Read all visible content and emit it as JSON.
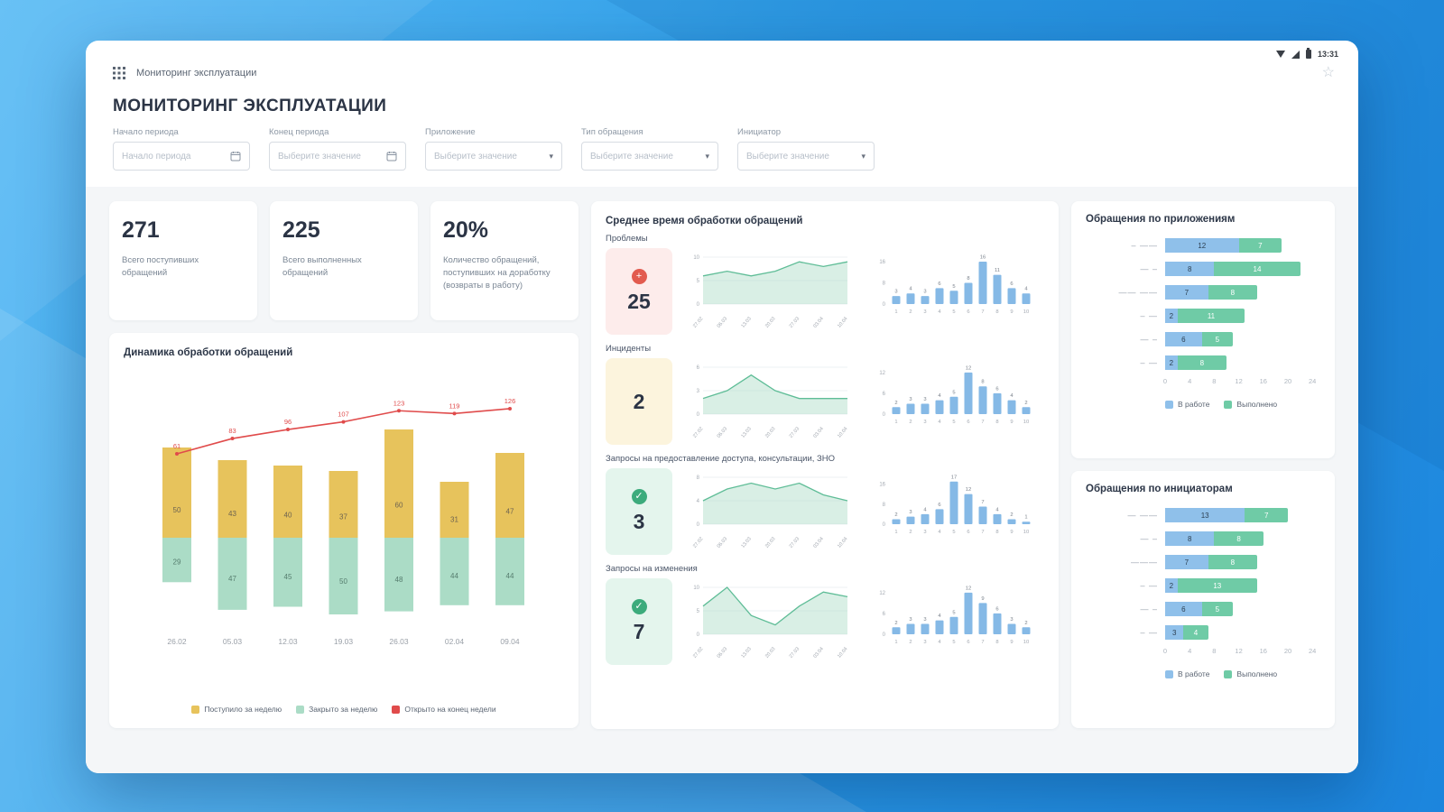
{
  "status_bar": {
    "time": "13:31"
  },
  "app_bar": {
    "title": "Мониторинг эксплуатации"
  },
  "page": {
    "title": "МОНИТОРИНГ ЭКСПЛУАТАЦИИ"
  },
  "filters": [
    {
      "label": "Начало периода",
      "placeholder": "Начало периода",
      "kind": "date"
    },
    {
      "label": "Конец периода",
      "placeholder": "Выберите значение",
      "kind": "date"
    },
    {
      "label": "Приложение",
      "placeholder": "Выберите значение",
      "kind": "select"
    },
    {
      "label": "Тип обращения",
      "placeholder": "Выберите значение",
      "kind": "select"
    },
    {
      "label": "Инициатор",
      "placeholder": "Выберите значение",
      "kind": "select"
    }
  ],
  "kpis": [
    {
      "value": "271",
      "label": "Всего поступивших обращений"
    },
    {
      "value": "225",
      "label": "Всего выполненных обращений"
    },
    {
      "value": "20%",
      "label": "Количество обращений, поступивших на доработку (возвраты в работу)"
    }
  ],
  "chart_data": {
    "dynamics": {
      "type": "bar+line",
      "title": "Динамика обработки обращений",
      "categories": [
        "26.02",
        "05.03",
        "12.03",
        "19.03",
        "26.03",
        "02.04",
        "09.04"
      ],
      "series": [
        {
          "name": "Поступило за неделю",
          "type": "bar-up",
          "color": "#e7c35c",
          "values": [
            50,
            43,
            40,
            37,
            60,
            31,
            47
          ]
        },
        {
          "name": "Закрыто за неделю",
          "type": "bar-down",
          "color": "#abdcc6",
          "values": [
            29,
            47,
            45,
            50,
            48,
            44,
            44
          ]
        },
        {
          "name": "Открыто на конец недели",
          "type": "line",
          "color": "#e04b4b",
          "values": [
            61,
            83,
            96,
            107,
            123,
            119,
            126
          ]
        }
      ]
    },
    "avg_times": {
      "title": "Среднее время обработки обращений",
      "rows": [
        {
          "label": "Проблемы",
          "value": "25",
          "status": "red",
          "icon": "plus-circle",
          "area": {
            "x": [
              "27.02",
              "06.03",
              "13.03",
              "20.03",
              "27.03",
              "03.04",
              "10.04"
            ],
            "values": [
              6,
              7,
              6,
              7,
              9,
              8,
              9
            ],
            "ymax": 10,
            "yticks": [
              10,
              5,
              0
            ]
          },
          "bars": {
            "x": [
              "1",
              "2",
              "3",
              "4",
              "5",
              "6",
              "7",
              "8",
              "9",
              "10"
            ],
            "values": [
              3,
              4,
              3,
              6,
              5,
              8,
              16,
              11,
              6,
              4
            ],
            "ymax": 17,
            "yticks": [
              16,
              8,
              0
            ]
          }
        },
        {
          "label": "Инциденты",
          "value": "2",
          "status": "yellow",
          "icon": "",
          "area": {
            "x": [
              "27.02",
              "06.03",
              "13.03",
              "20.03",
              "27.03",
              "03.04",
              "10.04"
            ],
            "values": [
              2,
              3,
              5,
              3,
              2,
              2,
              2
            ],
            "ymax": 6,
            "yticks": [
              6,
              3,
              0
            ]
          },
          "bars": {
            "x": [
              "1",
              "2",
              "3",
              "4",
              "5",
              "6",
              "7",
              "8",
              "9",
              "10"
            ],
            "values": [
              2,
              3,
              3,
              4,
              5,
              12,
              8,
              6,
              4,
              2
            ],
            "ymax": 13,
            "yticks": [
              12,
              6,
              0
            ]
          }
        },
        {
          "label": "Запросы на предоставление доступа, консультации, ЗНО",
          "value": "3",
          "status": "green",
          "icon": "check-circle",
          "area": {
            "x": [
              "27.02",
              "06.03",
              "13.03",
              "20.03",
              "27.03",
              "03.04",
              "10.04"
            ],
            "values": [
              4,
              6,
              7,
              6,
              7,
              5,
              4
            ],
            "ymax": 8,
            "yticks": [
              8,
              4,
              0
            ]
          },
          "bars": {
            "x": [
              "1",
              "2",
              "3",
              "4",
              "5",
              "6",
              "7",
              "8",
              "9",
              "10"
            ],
            "values": [
              2,
              3,
              4,
              6,
              17,
              12,
              7,
              4,
              2,
              1
            ],
            "ymax": 18,
            "yticks": [
              16,
              8,
              0
            ]
          }
        },
        {
          "label": "Запросы на изменения",
          "value": "7",
          "status": "green",
          "icon": "check-circle",
          "area": {
            "x": [
              "27.02",
              "06.03",
              "13.03",
              "20.03",
              "27.03",
              "03.04",
              "10.04"
            ],
            "values": [
              6,
              10,
              4,
              2,
              6,
              9,
              8
            ],
            "ymax": 10,
            "yticks": [
              10,
              5,
              0
            ]
          },
          "bars": {
            "x": [
              "1",
              "2",
              "3",
              "4",
              "5",
              "6",
              "7",
              "8",
              "9",
              "10"
            ],
            "values": [
              2,
              3,
              3,
              4,
              5,
              12,
              9,
              6,
              3,
              2
            ],
            "ymax": 13,
            "yticks": [
              12,
              6,
              0
            ]
          }
        }
      ]
    },
    "by_application": {
      "type": "hbar-stacked",
      "title": "Обращения по приложениям",
      "rows": [
        {
          "label": "– ——",
          "in_work": 12,
          "done": 7
        },
        {
          "label": "— –",
          "in_work": 8,
          "done": 14
        },
        {
          "label": "—— ——",
          "in_work": 7,
          "done": 8
        },
        {
          "label": "– —",
          "in_work": 2,
          "done": 11
        },
        {
          "label": "— –",
          "in_work": 6,
          "done": 5
        },
        {
          "label": "– —",
          "in_work": 2,
          "done": 8
        }
      ],
      "xticks": [
        0,
        4,
        8,
        12,
        16,
        20,
        24
      ],
      "legend": [
        {
          "label": "В работе",
          "color": "#8fc0ea"
        },
        {
          "label": "Выполнено",
          "color": "#6fcba6"
        }
      ]
    },
    "by_initiator": {
      "type": "hbar-stacked",
      "title": "Обращения по инициаторам",
      "rows": [
        {
          "label": "— ——",
          "in_work": 13,
          "done": 7
        },
        {
          "label": "— –",
          "in_work": 8,
          "done": 8
        },
        {
          "label": "———",
          "in_work": 7,
          "done": 8
        },
        {
          "label": "– —",
          "in_work": 2,
          "done": 13
        },
        {
          "label": "— –",
          "in_work": 6,
          "done": 5
        },
        {
          "label": "– —",
          "in_work": 3,
          "done": 4
        }
      ],
      "xticks": [
        0,
        4,
        8,
        12,
        16,
        20,
        24
      ],
      "legend": [
        {
          "label": "В работе",
          "color": "#8fc0ea"
        },
        {
          "label": "Выполнено",
          "color": "#6fcba6"
        }
      ]
    }
  }
}
